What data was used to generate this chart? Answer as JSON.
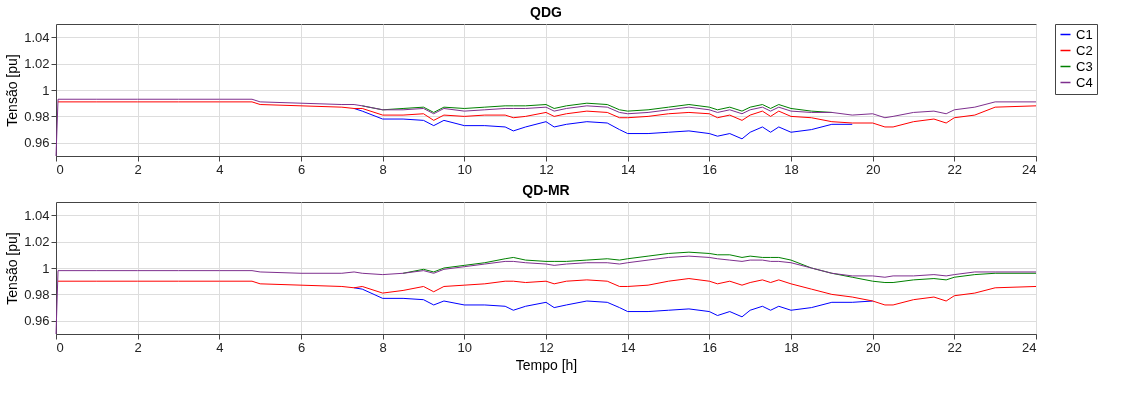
{
  "chart_data": [
    {
      "type": "line",
      "title": "QDG",
      "ylabel": "Tensão [pu]",
      "xlim": [
        0,
        24
      ],
      "xticks": [
        0,
        2,
        4,
        6,
        8,
        10,
        12,
        14,
        16,
        18,
        20,
        22,
        24
      ],
      "ylim": [
        0.95,
        1.05
      ],
      "yticks": [
        0.96,
        0.98,
        1,
        1.02,
        1.04
      ],
      "grid": true,
      "legend": "top right",
      "x": [
        0,
        0.05,
        1,
        2,
        3,
        4,
        4.8,
        5,
        6,
        7,
        7.3,
        7.5,
        8,
        8.5,
        9,
        9.25,
        9.5,
        10,
        10.5,
        11,
        11.2,
        11.5,
        12,
        12.2,
        12.5,
        13,
        13.5,
        13.8,
        14,
        14.5,
        15,
        15.5,
        16,
        16.2,
        16.5,
        16.8,
        17,
        17.3,
        17.5,
        17.7,
        18,
        18.5,
        19,
        19.5,
        20,
        20.3,
        20.5,
        21,
        21.5,
        21.8,
        22,
        22.5,
        23,
        24
      ],
      "series": [
        {
          "name": "C1",
          "color": "#0000ff",
          "values": [
            null,
            null,
            null,
            null,
            null,
            null,
            null,
            null,
            null,
            null,
            0.986,
            0.984,
            0.978,
            0.978,
            0.977,
            0.973,
            0.977,
            0.973,
            0.973,
            0.972,
            0.969,
            0.972,
            0.976,
            0.972,
            0.974,
            0.976,
            0.975,
            0.97,
            0.967,
            0.967,
            0.968,
            0.969,
            0.967,
            0.965,
            0.967,
            0.963,
            0.968,
            0.972,
            0.968,
            0.972,
            0.968,
            0.97,
            0.974,
            0.974,
            null,
            null,
            null,
            null,
            null,
            null,
            null,
            null,
            null,
            null
          ]
        },
        {
          "name": "C2",
          "color": "#ff0000",
          "values": [
            null,
            0.991,
            0.991,
            0.991,
            0.991,
            0.991,
            0.991,
            0.989,
            0.988,
            0.987,
            0.986,
            0.986,
            0.981,
            0.981,
            0.982,
            0.977,
            0.981,
            0.98,
            0.981,
            0.981,
            0.979,
            0.98,
            0.983,
            0.98,
            0.982,
            0.984,
            0.983,
            0.979,
            0.979,
            0.98,
            0.982,
            0.983,
            0.982,
            0.979,
            0.981,
            0.977,
            0.981,
            0.984,
            0.98,
            0.984,
            0.98,
            0.979,
            0.976,
            0.975,
            0.975,
            0.972,
            0.972,
            0.976,
            0.978,
            0.975,
            0.979,
            0.981,
            0.987,
            0.988
          ]
        },
        {
          "name": "C3",
          "color": "#008000",
          "values": [
            null,
            null,
            null,
            null,
            null,
            null,
            null,
            null,
            null,
            null,
            null,
            0.988,
            0.985,
            0.986,
            0.987,
            0.983,
            0.987,
            0.986,
            0.987,
            0.988,
            0.988,
            0.988,
            0.989,
            0.986,
            0.988,
            0.99,
            0.989,
            0.985,
            0.984,
            0.985,
            0.987,
            0.989,
            0.987,
            0.985,
            0.987,
            0.984,
            0.987,
            0.989,
            0.986,
            0.989,
            0.986,
            0.984,
            0.983,
            null,
            null,
            null,
            null,
            null,
            null,
            null,
            null,
            null,
            null,
            null
          ]
        },
        {
          "name": "C4",
          "color": "#7e2f8e",
          "values": [
            0.95,
            0.993,
            0.993,
            0.993,
            0.993,
            0.993,
            0.993,
            0.991,
            0.99,
            0.989,
            0.989,
            0.988,
            0.985,
            0.985,
            0.986,
            0.982,
            0.986,
            0.984,
            0.985,
            0.986,
            0.986,
            0.986,
            0.987,
            0.984,
            0.986,
            0.988,
            0.987,
            0.983,
            0.982,
            0.983,
            0.985,
            0.987,
            0.985,
            0.983,
            0.985,
            0.982,
            0.985,
            0.987,
            0.984,
            0.987,
            0.984,
            0.983,
            0.983,
            0.981,
            0.982,
            0.979,
            0.98,
            0.983,
            0.984,
            0.982,
            0.985,
            0.987,
            0.991,
            0.991
          ]
        }
      ]
    },
    {
      "type": "line",
      "title": "QD-MR",
      "xlabel": "Tempo [h]",
      "ylabel": "Tensão [pu]",
      "xlim": [
        0,
        24
      ],
      "xticks": [
        0,
        2,
        4,
        6,
        8,
        10,
        12,
        14,
        16,
        18,
        20,
        22,
        24
      ],
      "ylim": [
        0.95,
        1.05
      ],
      "yticks": [
        0.96,
        0.98,
        1,
        1.02,
        1.04
      ],
      "grid": true,
      "x": [
        0,
        0.05,
        1,
        2,
        3,
        4,
        4.8,
        5,
        6,
        7,
        7.3,
        7.5,
        8,
        8.5,
        9,
        9.25,
        9.5,
        10,
        10.5,
        11,
        11.2,
        11.5,
        12,
        12.2,
        12.5,
        13,
        13.5,
        13.8,
        14,
        14.5,
        15,
        15.5,
        16,
        16.2,
        16.5,
        16.8,
        17,
        17.3,
        17.5,
        17.7,
        18,
        18.5,
        19,
        19.5,
        20,
        20.3,
        20.5,
        21,
        21.5,
        21.8,
        22,
        22.5,
        23,
        24
      ],
      "series": [
        {
          "color": "#0000ff",
          "values": [
            null,
            null,
            null,
            null,
            null,
            null,
            null,
            null,
            null,
            null,
            0.985,
            0.984,
            0.977,
            0.977,
            0.976,
            0.972,
            0.975,
            0.972,
            0.972,
            0.971,
            0.968,
            0.971,
            0.974,
            0.97,
            0.972,
            0.975,
            0.974,
            0.97,
            0.967,
            0.967,
            0.968,
            0.969,
            0.967,
            0.964,
            0.967,
            0.963,
            0.968,
            0.971,
            0.968,
            0.971,
            0.968,
            0.97,
            0.974,
            0.974,
            0.975,
            null,
            null,
            null,
            null,
            null,
            null,
            null,
            null,
            null
          ]
        },
        {
          "color": "#ff0000",
          "values": [
            null,
            0.99,
            0.99,
            0.99,
            0.99,
            0.99,
            0.99,
            0.988,
            0.987,
            0.986,
            0.985,
            0.986,
            0.981,
            0.983,
            0.986,
            0.982,
            0.986,
            0.987,
            0.988,
            0.99,
            0.99,
            0.989,
            0.99,
            0.988,
            0.99,
            0.991,
            0.99,
            0.986,
            0.986,
            0.987,
            0.99,
            0.992,
            0.99,
            0.988,
            0.99,
            0.987,
            0.989,
            0.991,
            0.989,
            0.991,
            0.988,
            0.984,
            0.98,
            0.978,
            0.975,
            0.972,
            0.972,
            0.976,
            0.978,
            0.975,
            0.979,
            0.981,
            0.985,
            0.986
          ]
        },
        {
          "color": "#008000",
          "values": [
            null,
            null,
            null,
            null,
            null,
            null,
            null,
            null,
            null,
            null,
            null,
            null,
            null,
            0.996,
            0.999,
            0.997,
            1.0,
            1.002,
            1.004,
            1.007,
            1.008,
            1.006,
            1.005,
            1.005,
            1.005,
            1.006,
            1.007,
            1.006,
            1.007,
            1.009,
            1.011,
            1.012,
            1.011,
            1.01,
            1.01,
            1.008,
            1.009,
            1.008,
            1.008,
            1.008,
            1.006,
            1.0,
            0.996,
            0.993,
            0.99,
            0.989,
            0.989,
            0.991,
            0.992,
            0.991,
            0.993,
            0.995,
            0.996,
            0.996
          ]
        },
        {
          "color": "#7e2f8e",
          "values": [
            0.95,
            0.998,
            0.998,
            0.998,
            0.998,
            0.998,
            0.998,
            0.997,
            0.996,
            0.996,
            0.997,
            0.996,
            0.995,
            0.996,
            0.998,
            0.996,
            0.999,
            1.001,
            1.003,
            1.005,
            1.005,
            1.004,
            1.003,
            1.002,
            1.003,
            1.004,
            1.004,
            1.003,
            1.004,
            1.006,
            1.008,
            1.009,
            1.008,
            1.007,
            1.006,
            1.005,
            1.006,
            1.006,
            1.005,
            1.005,
            1.004,
            1.0,
            0.996,
            0.994,
            0.994,
            0.993,
            0.994,
            0.994,
            0.995,
            0.994,
            0.995,
            0.997,
            0.997,
            0.997
          ]
        }
      ]
    }
  ]
}
